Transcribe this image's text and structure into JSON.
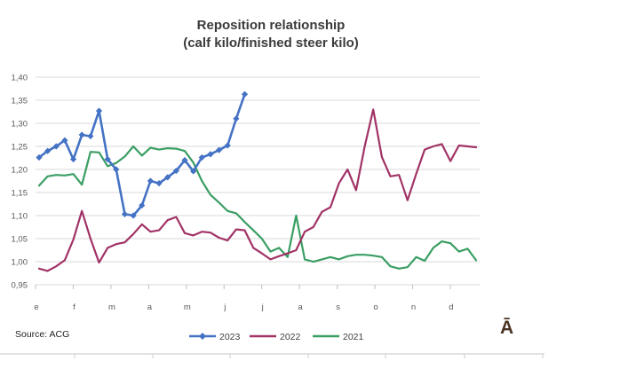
{
  "title": {
    "line1": "Reposition relationship",
    "line2": "(calf kilo/finished steer kilo)"
  },
  "source": "Source: ACG",
  "watermark": "Ā",
  "chart_data": {
    "type": "line",
    "title": "Reposition relationship (calf kilo/finished steer kilo)",
    "xlabel": "",
    "ylabel": "",
    "x_unit": "week of year",
    "ylim": [
      0.95,
      1.4
    ],
    "y_step": 0.05,
    "grid": "horizontal",
    "legend_position": "bottom",
    "y_tick_labels": [
      "0,95",
      "1,00",
      "1,05",
      "1,10",
      "1,15",
      "1,20",
      "1,25",
      "1,30",
      "1,35",
      "1,40"
    ],
    "x_tick_labels": [
      "e",
      "f",
      "m",
      "a",
      "m",
      "j",
      "j",
      "a",
      "s",
      "o",
      "n",
      "d"
    ],
    "weeks_per_year": 52,
    "series": [
      {
        "name": "2023",
        "color": "#4472C4",
        "marker": "diamond",
        "line_width": 2.6,
        "values": [
          1.226,
          1.24,
          1.25,
          1.263,
          1.222,
          1.275,
          1.272,
          1.327,
          1.222,
          1.2,
          1.103,
          1.1,
          1.122,
          1.175,
          1.17,
          1.183,
          1.197,
          1.22,
          1.196,
          1.226,
          1.233,
          1.242,
          1.252,
          1.31,
          1.363
        ]
      },
      {
        "name": "2022",
        "color": "#A13366",
        "marker": "none",
        "line_width": 2.2,
        "values": [
          0.985,
          0.98,
          0.99,
          1.003,
          1.048,
          1.11,
          1.05,
          0.998,
          1.03,
          1.038,
          1.042,
          1.06,
          1.081,
          1.065,
          1.068,
          1.09,
          1.097,
          1.062,
          1.057,
          1.065,
          1.063,
          1.052,
          1.046,
          1.07,
          1.068,
          1.03,
          1.018,
          1.005,
          1.012,
          1.018,
          1.025,
          1.065,
          1.075,
          1.108,
          1.118,
          1.17,
          1.2,
          1.155,
          1.25,
          1.33,
          1.227,
          1.185,
          1.188,
          1.133,
          1.19,
          1.243,
          1.25,
          1.255,
          1.218,
          1.252,
          1.25,
          1.248
        ]
      },
      {
        "name": "2021",
        "color": "#3A9E63",
        "marker": "none",
        "line_width": 2.2,
        "values": [
          1.165,
          1.185,
          1.188,
          1.187,
          1.19,
          1.167,
          1.238,
          1.237,
          1.207,
          1.214,
          1.228,
          1.25,
          1.23,
          1.247,
          1.243,
          1.246,
          1.245,
          1.24,
          1.215,
          1.175,
          1.145,
          1.128,
          1.11,
          1.105,
          1.086,
          1.068,
          1.05,
          1.022,
          1.03,
          1.01,
          1.1,
          1.005,
          1.0,
          1.005,
          1.01,
          1.005,
          1.012,
          1.015,
          1.015,
          1.013,
          1.01,
          0.99,
          0.985,
          0.988,
          1.01,
          1.002,
          1.03,
          1.044,
          1.04,
          1.022,
          1.028,
          1.003
        ]
      }
    ]
  }
}
